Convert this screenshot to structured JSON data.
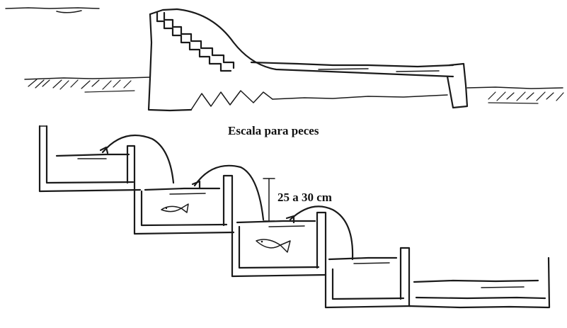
{
  "diagram": {
    "title": "Escala para peces",
    "dimension_label": "25 a 30 cm"
  },
  "colors": {
    "ink": "#1a1a1a",
    "background": "#ffffff"
  }
}
